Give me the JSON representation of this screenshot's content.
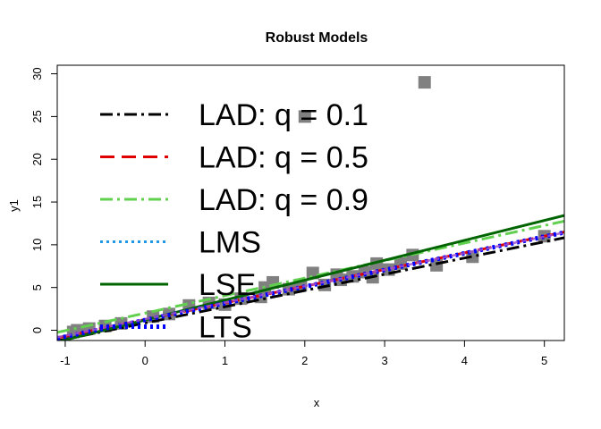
{
  "chart_data": {
    "type": "scatter",
    "title": "Robust Models",
    "xlabel": "x",
    "ylabel": "y1",
    "xlim": [
      -1.1,
      5.25
    ],
    "ylim": [
      -1.2,
      31
    ],
    "xticks": [
      -1,
      0,
      1,
      2,
      3,
      4,
      5
    ],
    "yticks": [
      0,
      5,
      10,
      15,
      20,
      25,
      30
    ],
    "grid": false,
    "legend_position": "top-left",
    "points": [
      {
        "x": -0.9,
        "y": -0.2
      },
      {
        "x": -0.85,
        "y": 0.0
      },
      {
        "x": -0.7,
        "y": 0.2
      },
      {
        "x": -0.5,
        "y": 0.5
      },
      {
        "x": -0.3,
        "y": 0.8
      },
      {
        "x": 0.1,
        "y": 1.6
      },
      {
        "x": 0.3,
        "y": 1.9
      },
      {
        "x": 0.55,
        "y": 2.9
      },
      {
        "x": 0.8,
        "y": 3.2
      },
      {
        "x": 1.0,
        "y": 3.0
      },
      {
        "x": 1.2,
        "y": 3.7
      },
      {
        "x": 1.45,
        "y": 3.9
      },
      {
        "x": 1.5,
        "y": 5.0
      },
      {
        "x": 1.6,
        "y": 5.6
      },
      {
        "x": 1.8,
        "y": 4.8
      },
      {
        "x": 1.95,
        "y": 5.3
      },
      {
        "x": 2.0,
        "y": 25.0
      },
      {
        "x": 2.1,
        "y": 6.7
      },
      {
        "x": 2.25,
        "y": 5.3
      },
      {
        "x": 2.4,
        "y": 6.5
      },
      {
        "x": 2.45,
        "y": 5.9
      },
      {
        "x": 2.6,
        "y": 6.3
      },
      {
        "x": 2.75,
        "y": 6.8
      },
      {
        "x": 2.85,
        "y": 6.2
      },
      {
        "x": 2.9,
        "y": 7.8
      },
      {
        "x": 3.05,
        "y": 7.1
      },
      {
        "x": 3.2,
        "y": 7.8
      },
      {
        "x": 3.35,
        "y": 8.8
      },
      {
        "x": 3.5,
        "y": 29.0
      },
      {
        "x": 3.65,
        "y": 7.6
      },
      {
        "x": 4.1,
        "y": 8.6
      },
      {
        "x": 5.0,
        "y": 11.0
      }
    ],
    "lines": [
      {
        "name": "LAD: q = 0.1",
        "color": "#000000",
        "style": "dashdot",
        "width": 3,
        "intercept": 0.85,
        "slope": 1.9
      },
      {
        "name": "LAD: q = 0.5",
        "color": "#df0000",
        "style": "dashed",
        "width": 3,
        "intercept": 1.25,
        "slope": 1.95
      },
      {
        "name": "LAD: q = 0.9",
        "color": "#61d04f",
        "style": "dashdot",
        "width": 3,
        "intercept": 2.0,
        "slope": 2.05
      },
      {
        "name": "LMS",
        "color": "#2297e6",
        "style": "dotted",
        "width": 3,
        "intercept": 1.2,
        "slope": 1.95
      },
      {
        "name": "LSE",
        "color": "#006400",
        "style": "solid",
        "width": 3,
        "intercept": 1.2,
        "slope": 2.33
      },
      {
        "name": "LTS",
        "color": "#0000ff",
        "style": "dotted",
        "width": 5,
        "intercept": 1.2,
        "slope": 1.95
      }
    ],
    "overlay_purple": {
      "color": "#a050d0",
      "intercept": 1.3,
      "slope": 1.93
    }
  },
  "colors": {
    "points": "#808080",
    "axis": "#000000",
    "background": "#ffffff"
  }
}
